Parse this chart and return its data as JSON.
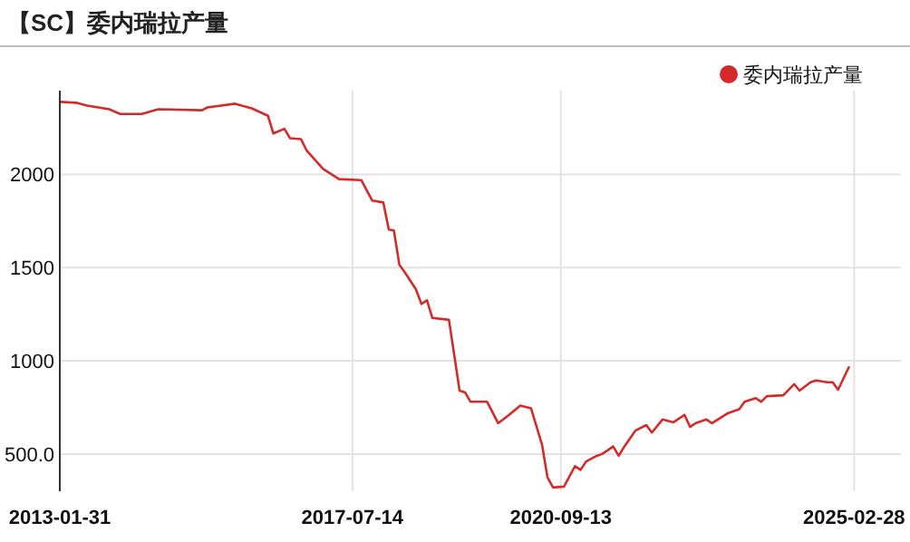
{
  "chart_data": {
    "type": "line",
    "title": "【SC】委内瑞拉产量",
    "x": [
      "2013-02",
      "2013-05",
      "2013-07",
      "2013-11",
      "2014-01",
      "2014-05",
      "2014-08",
      "2015-04",
      "2015-05",
      "2015-10",
      "2016-01",
      "2016-04",
      "2016-05",
      "2016-07",
      "2016-08",
      "2016-10",
      "2016-11",
      "2017-02",
      "2017-05",
      "2017-09",
      "2017-11",
      "2018-01",
      "2018-02",
      "2018-03",
      "2018-04",
      "2018-05",
      "2018-07",
      "2018-08",
      "2018-09",
      "2018-10",
      "2019-01",
      "2019-03",
      "2019-04",
      "2019-05",
      "2019-08",
      "2019-10",
      "2019-12",
      "2020-02",
      "2020-04",
      "2020-06",
      "2020-07",
      "2020-08",
      "2020-10",
      "2020-12",
      "2021-01",
      "2021-02",
      "2021-04",
      "2021-05",
      "2021-07",
      "2021-08",
      "2021-09",
      "2021-11",
      "2022-01",
      "2022-02",
      "2022-04",
      "2022-06",
      "2022-08",
      "2022-09",
      "2022-10",
      "2022-12",
      "2023-01",
      "2023-04",
      "2023-06",
      "2023-07",
      "2023-09",
      "2023-10",
      "2023-11",
      "2024-02",
      "2024-04",
      "2024-05",
      "2024-07",
      "2024-08",
      "2024-10",
      "2024-11",
      "2024-12",
      "2025-02"
    ],
    "series": [
      {
        "name": "委内瑞拉产量",
        "color": "#d42a2a",
        "values": [
          2390,
          2385,
          2370,
          2350,
          2325,
          2325,
          2350,
          2345,
          2360,
          2380,
          2355,
          2315,
          2220,
          2245,
          2195,
          2190,
          2130,
          2030,
          1975,
          1970,
          1860,
          1850,
          1705,
          1700,
          1515,
          1475,
          1385,
          1305,
          1325,
          1230,
          1220,
          840,
          830,
          780,
          780,
          665,
          710,
          760,
          745,
          550,
          375,
          320,
          325,
          435,
          415,
          460,
          490,
          500,
          540,
          490,
          540,
          625,
          655,
          615,
          685,
          670,
          710,
          645,
          665,
          685,
          665,
          720,
          740,
          780,
          800,
          780,
          810,
          815,
          875,
          840,
          885,
          895,
          885,
          885,
          845,
          970
        ]
      }
    ],
    "xlim": [
      "2013-01-31",
      "2025-11-15"
    ],
    "xticks": [
      {
        "value": "2013-01-31",
        "label": "2013-01-31"
      },
      {
        "value": "2017-07-14",
        "label": "2017-07-14"
      },
      {
        "value": "2020-09-13",
        "label": "2020-09-13"
      },
      {
        "value": "2025-02-28",
        "label": "2025-02-28"
      }
    ],
    "ylim": [
      300,
      2450
    ],
    "yticks": [
      {
        "value": 500,
        "label": "500.0"
      },
      1000,
      1500,
      2000
    ],
    "grid": true,
    "legend": "top right",
    "line_style": "solid",
    "marker": "none"
  }
}
